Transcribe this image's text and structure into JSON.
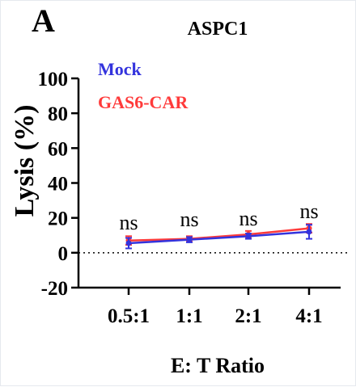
{
  "panel_label": "A",
  "chart_data": {
    "type": "line",
    "title": "ASPC1",
    "xlabel": "E: T Ratio",
    "ylabel": "Lysis (%)",
    "categories": [
      "0.5:1",
      "1:1",
      "2:1",
      "4:1"
    ],
    "ylim": [
      -20,
      100
    ],
    "yticks": [
      -20,
      0,
      20,
      40,
      60,
      80,
      100
    ],
    "ytick_labels": [
      "-20",
      "0",
      "20",
      "40",
      "60",
      "80",
      "100"
    ],
    "reference_line": 0,
    "legend_position": "top-left",
    "series": [
      {
        "name": "Mock",
        "color": "#3333dd",
        "values": [
          5.5,
          7.5,
          9.5,
          12
        ],
        "errors": [
          3,
          1.5,
          1.5,
          4
        ]
      },
      {
        "name": "GAS6-CAR",
        "color": "#ff3a3a",
        "values": [
          7,
          8,
          10.5,
          14
        ],
        "errors": [
          2.5,
          1.5,
          2,
          2.5
        ]
      }
    ],
    "annotations": [
      "ns",
      "ns",
      "ns",
      "ns"
    ]
  }
}
